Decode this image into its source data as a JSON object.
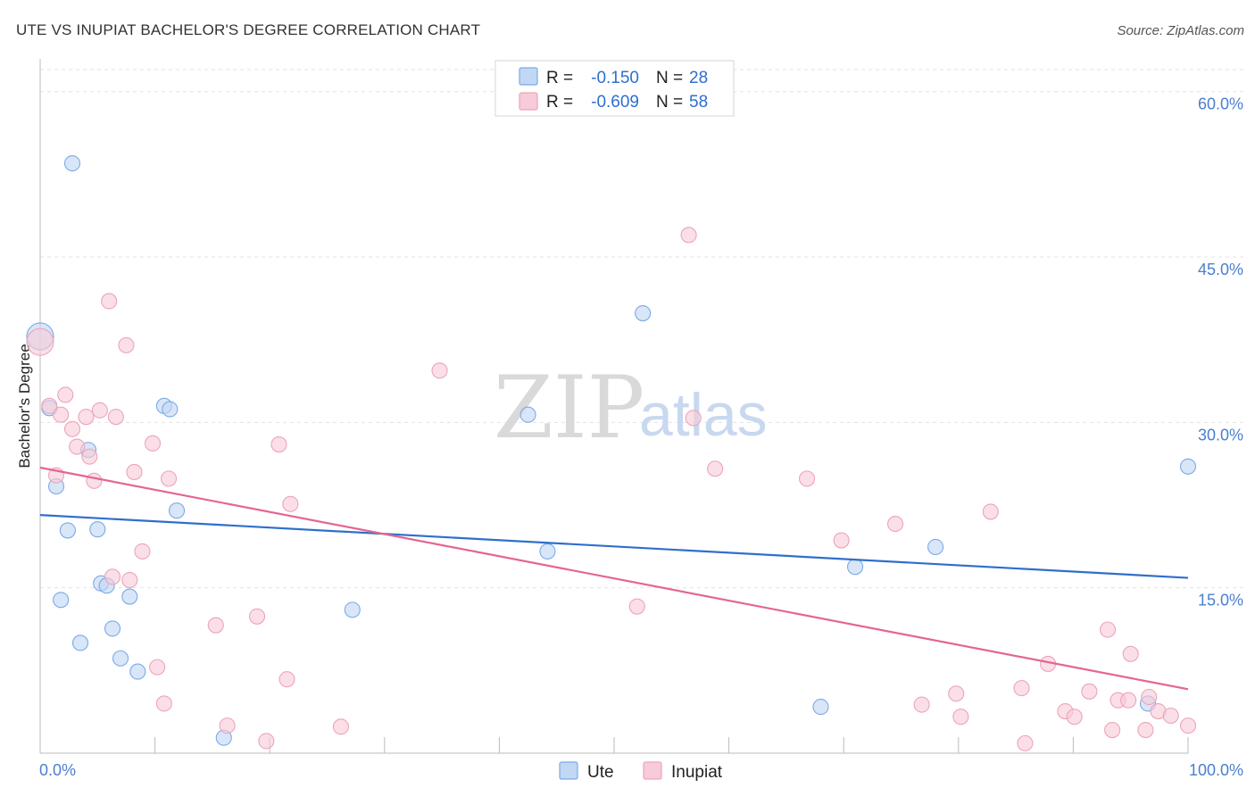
{
  "chart_data": {
    "type": "scatter",
    "title": "UTE VS INUPIAT BACHELOR'S DEGREE CORRELATION CHART",
    "source": "Source: ZipAtlas.com",
    "xlabel": "",
    "ylabel": "Bachelor's Degree",
    "xlim": [
      0,
      100
    ],
    "ylim": [
      0,
      62
    ],
    "x_tick_labels": [
      "0.0%",
      "100.0%"
    ],
    "y_ticks": [
      15,
      30,
      45,
      60
    ],
    "y_tick_labels": [
      "15.0%",
      "30.0%",
      "45.0%",
      "60.0%"
    ],
    "grid": true,
    "watermark": {
      "zip": "ZIP",
      "atlas": "atlas"
    },
    "legend_stats": [
      {
        "r_label": "R =",
        "r_value": "-0.150",
        "n_label": "N =",
        "n_value": "28"
      },
      {
        "r_label": "R =",
        "r_value": "-0.609",
        "n_label": "N =",
        "n_value": "58"
      }
    ],
    "series": [
      {
        "name": "Ute",
        "color": "#7aaae8",
        "fill": "#c2d7f3",
        "line_color": "#2f6fcc",
        "trend": {
          "x": [
            0,
            100
          ],
          "y": [
            21.6,
            15.9
          ]
        },
        "points": [
          {
            "x": 0.0,
            "y": 37.8,
            "big": true
          },
          {
            "x": 2.8,
            "y": 53.5
          },
          {
            "x": 0.8,
            "y": 31.3
          },
          {
            "x": 4.2,
            "y": 27.5
          },
          {
            "x": 1.4,
            "y": 24.2
          },
          {
            "x": 2.4,
            "y": 20.2
          },
          {
            "x": 5.0,
            "y": 20.3
          },
          {
            "x": 5.3,
            "y": 15.4
          },
          {
            "x": 5.8,
            "y": 15.2
          },
          {
            "x": 1.8,
            "y": 13.9
          },
          {
            "x": 7.8,
            "y": 14.2
          },
          {
            "x": 6.3,
            "y": 11.3
          },
          {
            "x": 3.5,
            "y": 10.0
          },
          {
            "x": 7.0,
            "y": 8.6
          },
          {
            "x": 8.5,
            "y": 7.4
          },
          {
            "x": 10.8,
            "y": 31.5
          },
          {
            "x": 11.3,
            "y": 31.2
          },
          {
            "x": 11.9,
            "y": 22.0
          },
          {
            "x": 16.0,
            "y": 1.4
          },
          {
            "x": 27.2,
            "y": 13.0
          },
          {
            "x": 42.5,
            "y": 30.7
          },
          {
            "x": 44.2,
            "y": 18.3
          },
          {
            "x": 52.5,
            "y": 39.9
          },
          {
            "x": 68.0,
            "y": 4.2
          },
          {
            "x": 71.0,
            "y": 16.9
          },
          {
            "x": 78.0,
            "y": 18.7
          },
          {
            "x": 96.5,
            "y": 4.5
          },
          {
            "x": 100.0,
            "y": 26.0
          }
        ]
      },
      {
        "name": "Inupiat",
        "color": "#eea3bb",
        "fill": "#f7cbd9",
        "line_color": "#e46592",
        "trend": {
          "x": [
            0,
            100
          ],
          "y": [
            25.9,
            5.8
          ]
        },
        "points": [
          {
            "x": 0.0,
            "y": 37.3,
            "big": true
          },
          {
            "x": 0.8,
            "y": 31.5
          },
          {
            "x": 1.8,
            "y": 30.7
          },
          {
            "x": 2.2,
            "y": 32.5
          },
          {
            "x": 2.8,
            "y": 29.4
          },
          {
            "x": 3.2,
            "y": 27.8
          },
          {
            "x": 1.4,
            "y": 25.2
          },
          {
            "x": 4.0,
            "y": 30.5
          },
          {
            "x": 4.3,
            "y": 26.9
          },
          {
            "x": 4.7,
            "y": 24.7
          },
          {
            "x": 5.2,
            "y": 31.1
          },
          {
            "x": 6.0,
            "y": 41.0
          },
          {
            "x": 6.6,
            "y": 30.5
          },
          {
            "x": 7.5,
            "y": 37.0
          },
          {
            "x": 8.2,
            "y": 25.5
          },
          {
            "x": 8.9,
            "y": 18.3
          },
          {
            "x": 6.3,
            "y": 16.0
          },
          {
            "x": 7.8,
            "y": 15.7
          },
          {
            "x": 9.8,
            "y": 28.1
          },
          {
            "x": 11.2,
            "y": 24.9
          },
          {
            "x": 10.2,
            "y": 7.8
          },
          {
            "x": 10.8,
            "y": 4.5
          },
          {
            "x": 15.3,
            "y": 11.6
          },
          {
            "x": 16.3,
            "y": 2.5
          },
          {
            "x": 18.9,
            "y": 12.4
          },
          {
            "x": 19.7,
            "y": 1.1
          },
          {
            "x": 20.8,
            "y": 28.0
          },
          {
            "x": 21.8,
            "y": 22.6
          },
          {
            "x": 21.5,
            "y": 6.7
          },
          {
            "x": 26.2,
            "y": 2.4
          },
          {
            "x": 34.8,
            "y": 34.7
          },
          {
            "x": 52.0,
            "y": 13.3
          },
          {
            "x": 56.5,
            "y": 47.0
          },
          {
            "x": 56.9,
            "y": 30.4
          },
          {
            "x": 58.8,
            "y": 25.8
          },
          {
            "x": 66.8,
            "y": 24.9
          },
          {
            "x": 69.8,
            "y": 19.3
          },
          {
            "x": 74.5,
            "y": 20.8
          },
          {
            "x": 76.8,
            "y": 4.4
          },
          {
            "x": 79.8,
            "y": 5.4
          },
          {
            "x": 80.2,
            "y": 3.3
          },
          {
            "x": 82.8,
            "y": 21.9
          },
          {
            "x": 85.5,
            "y": 5.9
          },
          {
            "x": 85.8,
            "y": 0.9
          },
          {
            "x": 87.8,
            "y": 8.1
          },
          {
            "x": 89.3,
            "y": 3.8
          },
          {
            "x": 90.1,
            "y": 3.3
          },
          {
            "x": 91.4,
            "y": 5.6
          },
          {
            "x": 93.0,
            "y": 11.2
          },
          {
            "x": 93.4,
            "y": 2.1
          },
          {
            "x": 93.9,
            "y": 4.8
          },
          {
            "x": 94.8,
            "y": 4.8
          },
          {
            "x": 95.0,
            "y": 9.0
          },
          {
            "x": 96.3,
            "y": 2.1
          },
          {
            "x": 96.6,
            "y": 5.1
          },
          {
            "x": 97.4,
            "y": 3.8
          },
          {
            "x": 98.5,
            "y": 3.4
          },
          {
            "x": 100.0,
            "y": 2.5
          }
        ]
      }
    ]
  }
}
